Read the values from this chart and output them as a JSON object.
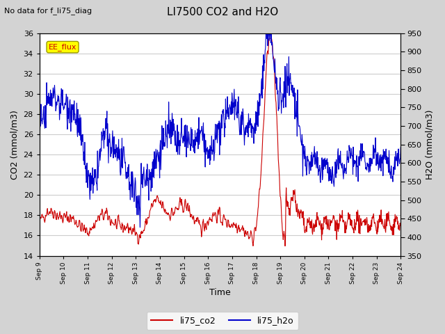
{
  "title": "LI7500 CO2 and H2O",
  "subtitle": "No data for f_li75_diag",
  "xlabel": "Time",
  "ylabel_left": "CO2 (mmol/m3)",
  "ylabel_right": "H2O (mmol/m3)",
  "ylim_left": [
    14,
    36
  ],
  "ylim_right": [
    350,
    950
  ],
  "yticks_left": [
    14,
    16,
    18,
    20,
    22,
    24,
    26,
    28,
    30,
    32,
    34,
    36
  ],
  "yticks_right": [
    350,
    400,
    450,
    500,
    550,
    600,
    650,
    700,
    750,
    800,
    850,
    900,
    950
  ],
  "xtick_labels": [
    "Sep 9",
    "Sep 10",
    "Sep 11",
    "Sep 12",
    "Sep 13",
    "Sep 14",
    "Sep 15",
    "Sep 16",
    "Sep 17",
    "Sep 18",
    "Sep 19",
    "Sep 20",
    "Sep 21",
    "Sep 22",
    "Sep 23",
    "Sep 24"
  ],
  "co2_color": "#cc0000",
  "h2o_color": "#0000cc",
  "legend_label_co2": "li75_co2",
  "legend_label_h2o": "li75_h2o",
  "ee_flux_box_color": "#ffff00",
  "ee_flux_text_color": "#cc0000",
  "ee_flux_box_edge": "#999900",
  "bg_color": "#d3d3d3",
  "plot_bg_color": "#ffffff",
  "grid_color": "#cccccc",
  "seed": 42
}
